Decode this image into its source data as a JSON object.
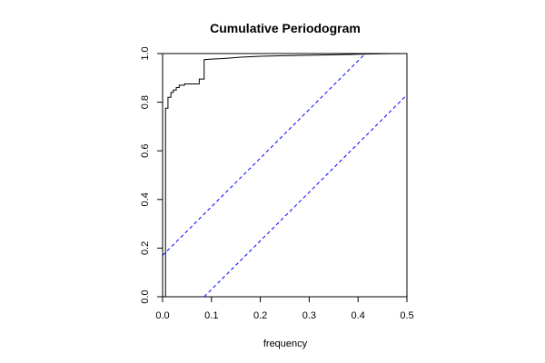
{
  "chart_data": {
    "type": "line",
    "title": "Cumulative Periodogram",
    "xlabel": "frequency",
    "ylabel": "",
    "xlim": [
      0,
      0.5
    ],
    "ylim": [
      0,
      1
    ],
    "x_ticks": [
      "0.0",
      "0.1",
      "0.2",
      "0.3",
      "0.4",
      "0.5"
    ],
    "y_ticks": [
      "0.0",
      "0.2",
      "0.4",
      "0.6",
      "0.8",
      "1.0"
    ],
    "grid": false,
    "legend": "none",
    "series": [
      {
        "style": "step",
        "color": "#000000",
        "x": [
          0.0,
          0.006,
          0.006,
          0.011,
          0.011,
          0.017,
          0.017,
          0.022,
          0.022,
          0.028,
          0.028,
          0.034,
          0.034,
          0.039,
          0.039,
          0.045,
          0.045,
          0.075,
          0.075,
          0.085,
          0.085,
          0.1,
          0.12,
          0.14,
          0.16,
          0.18,
          0.2,
          0.25,
          0.3,
          0.35,
          0.4,
          0.45,
          0.5
        ],
        "y": [
          0.0,
          0.0,
          0.775,
          0.775,
          0.82,
          0.82,
          0.84,
          0.84,
          0.85,
          0.85,
          0.86,
          0.86,
          0.87,
          0.87,
          0.87,
          0.87,
          0.875,
          0.875,
          0.895,
          0.895,
          0.975,
          0.977,
          0.979,
          0.982,
          0.985,
          0.987,
          0.989,
          0.991,
          0.993,
          0.995,
          0.997,
          0.999,
          1.0
        ]
      },
      {
        "style": "dashed",
        "color": "#0000ff",
        "x": [
          0.0,
          0.415
        ],
        "y": [
          0.17,
          1.0
        ]
      },
      {
        "style": "dashed",
        "color": "#0000ff",
        "x": [
          0.085,
          0.5
        ],
        "y": [
          0.0,
          0.83
        ]
      }
    ]
  }
}
